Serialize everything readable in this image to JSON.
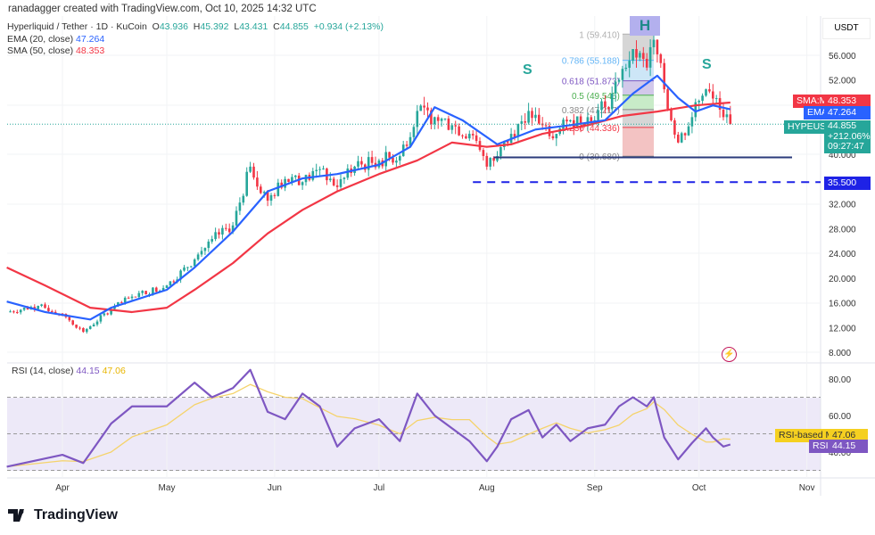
{
  "credit": "ranadagger created with TradingView.com, Oct 10, 2025 14:32 UTC",
  "legend": {
    "symbol": "Hyperliquid / Tether · 1D · KuCoin",
    "o_label": "O",
    "o": "43.936",
    "h_label": "H",
    "h": "45.392",
    "l_label": "L",
    "l": "43.431",
    "c_label": "C",
    "c": "44.855",
    "change": "+0.934 (+2.13%)",
    "ema_label": "EMA (20, close)",
    "ema": "47.264",
    "sma_label": "SMA (50, close)",
    "sma": "48.353",
    "rsi_label": "RSI (14, close)",
    "rsi": "44.15",
    "rsi_ma": "47.06"
  },
  "currency": "USDT",
  "tags": {
    "sma_name": "SMA:MA",
    "sma": "48.353",
    "ema_name": "EMA",
    "ema": "47.264",
    "sym_name": "HYPEUSDT",
    "price": "44.855",
    "pct": "+212.06%",
    "countdown": "09:27:47",
    "level": "35.500",
    "rsi_ma_name": "RSI-based MA",
    "rsi_ma": "47.06",
    "rsi_name": "RSI",
    "rsi": "44.15"
  },
  "annotations": {
    "left_shoulder": "S",
    "head": "H",
    "right_shoulder": "S"
  },
  "logo": "TradingView",
  "colors": {
    "up": "#26a69a",
    "down": "#f23645",
    "ema": "#2962ff",
    "sma": "#f23645",
    "rsi": "#7e57c2",
    "rsi_ma": "#f5d36b",
    "neckline": "#2a3a7a",
    "support": "#1e22e6"
  },
  "chart_data": [
    {
      "type": "candlestick",
      "title": "Hyperliquid / Tether · 1D · KuCoin",
      "ylabel": "USDT",
      "ylim": [
        6,
        62
      ],
      "y_ticks": [
        "56.000",
        "52.000",
        "40.000",
        "32.000",
        "28.000",
        "24.000",
        "20.000",
        "16.000",
        "12.000",
        "8.000"
      ],
      "x_ticks": [
        "Apr",
        "May",
        "Jun",
        "Jul",
        "Aug",
        "Sep",
        "Oct",
        "Nov"
      ],
      "close": [
        [
          "2025-03-16",
          14.5
        ],
        [
          "2025-03-25",
          15.5
        ],
        [
          "2025-04-01",
          14.2
        ],
        [
          "2025-04-07",
          11.3
        ],
        [
          "2025-04-15",
          15
        ],
        [
          "2025-04-21",
          17
        ],
        [
          "2025-05-01",
          18.8
        ],
        [
          "2025-05-09",
          23
        ],
        [
          "2025-05-14",
          26.3
        ],
        [
          "2025-05-20",
          28.5
        ],
        [
          "2025-05-25",
          38
        ],
        [
          "2025-05-30",
          32.5
        ],
        [
          "2025-06-04",
          36
        ],
        [
          "2025-06-09",
          35.5
        ],
        [
          "2025-06-14",
          37.6
        ],
        [
          "2025-06-19",
          34.7
        ],
        [
          "2025-06-24",
          38
        ],
        [
          "2025-07-01",
          39
        ],
        [
          "2025-07-07",
          39.7
        ],
        [
          "2025-07-12",
          47
        ],
        [
          "2025-07-17",
          46
        ],
        [
          "2025-07-22",
          44.7
        ],
        [
          "2025-07-27",
          43.3
        ],
        [
          "2025-08-01",
          38
        ],
        [
          "2025-08-04",
          39.7
        ],
        [
          "2025-08-08",
          43.3
        ],
        [
          "2025-08-13",
          47
        ],
        [
          "2025-08-17",
          44.7
        ],
        [
          "2025-08-21",
          43.3
        ],
        [
          "2025-08-25",
          45.5
        ],
        [
          "2025-08-30",
          46
        ],
        [
          "2025-09-04",
          47.6
        ],
        [
          "2025-09-08",
          52
        ],
        [
          "2025-09-12",
          57
        ],
        [
          "2025-09-16",
          54
        ],
        [
          "2025-09-18",
          58.5
        ],
        [
          "2025-09-21",
          50.5
        ],
        [
          "2025-09-25",
          41.9
        ],
        [
          "2025-09-29",
          46
        ],
        [
          "2025-10-03",
          50.5
        ],
        [
          "2025-10-05",
          49
        ],
        [
          "2025-10-08",
          46
        ],
        [
          "2025-10-10",
          44.855
        ]
      ],
      "series": [
        {
          "name": "EMA (20, close)",
          "values": [
            [
              "2025-03-16",
              16.2
            ],
            [
              "2025-03-27",
              14.5
            ],
            [
              "2025-04-09",
              13.3
            ],
            [
              "2025-04-15",
              15.2
            ],
            [
              "2025-05-01",
              18.1
            ],
            [
              "2025-05-09",
              21.7
            ],
            [
              "2025-05-20",
              27.5
            ],
            [
              "2025-05-30",
              34
            ],
            [
              "2025-06-09",
              36.1
            ],
            [
              "2025-06-19",
              36.8
            ],
            [
              "2025-07-01",
              38.3
            ],
            [
              "2025-07-10",
              41.2
            ],
            [
              "2025-07-17",
              47.6
            ],
            [
              "2025-07-25",
              45.5
            ],
            [
              "2025-08-04",
              41.6
            ],
            [
              "2025-08-15",
              44
            ],
            [
              "2025-08-25",
              44.7
            ],
            [
              "2025-09-04",
              45.5
            ],
            [
              "2025-09-12",
              49.8
            ],
            [
              "2025-09-19",
              52.7
            ],
            [
              "2025-09-25",
              49.1
            ],
            [
              "2025-09-30",
              46.9
            ],
            [
              "2025-10-05",
              47.9
            ],
            [
              "2025-10-10",
              47.264
            ]
          ]
        },
        {
          "name": "SMA (50, close)",
          "values": [
            [
              "2025-03-16",
              21.7
            ],
            [
              "2025-03-27",
              18.8
            ],
            [
              "2025-04-09",
              15.2
            ],
            [
              "2025-04-21",
              14.5
            ],
            [
              "2025-05-01",
              15.2
            ],
            [
              "2025-05-09",
              18.1
            ],
            [
              "2025-05-20",
              22.4
            ],
            [
              "2025-05-30",
              27.2
            ],
            [
              "2025-06-09",
              31
            ],
            [
              "2025-06-19",
              34
            ],
            [
              "2025-07-01",
              36.8
            ],
            [
              "2025-07-12",
              39
            ],
            [
              "2025-07-22",
              41.9
            ],
            [
              "2025-08-01",
              41.2
            ],
            [
              "2025-08-08",
              41.6
            ],
            [
              "2025-08-17",
              43.3
            ],
            [
              "2025-08-30",
              44.7
            ],
            [
              "2025-09-09",
              46.2
            ],
            [
              "2025-09-19",
              46.9
            ],
            [
              "2025-09-30",
              47.9
            ],
            [
              "2025-10-10",
              48.353
            ]
          ]
        }
      ],
      "fibonacci": [
        {
          "level": "1",
          "price": 59.41
        },
        {
          "level": "0.786",
          "price": 55.188
        },
        {
          "level": "0.618",
          "price": 51.873
        },
        {
          "level": "0.5",
          "price": 49.545
        },
        {
          "level": "0.382",
          "price": 47.217
        },
        {
          "level": "0.236",
          "price": 44.336
        },
        {
          "level": "0",
          "price": 39.68
        }
      ],
      "neckline": 39.5,
      "support": 35.5
    },
    {
      "type": "line",
      "title": "RSI (14, close)",
      "ylim": [
        25,
        90
      ],
      "y_ticks": [
        "80.00",
        "60.00",
        "40.00"
      ],
      "bands": [
        70,
        50,
        30
      ],
      "series": [
        {
          "name": "RSI",
          "values": [
            [
              "2025-03-16",
              32
            ],
            [
              "2025-04-01",
              38.5
            ],
            [
              "2025-04-07",
              34
            ],
            [
              "2025-04-15",
              55.6
            ],
            [
              "2025-04-21",
              65
            ],
            [
              "2025-05-01",
              65
            ],
            [
              "2025-05-09",
              78
            ],
            [
              "2025-05-14",
              70
            ],
            [
              "2025-05-20",
              75
            ],
            [
              "2025-05-25",
              85
            ],
            [
              "2025-05-30",
              62
            ],
            [
              "2025-06-04",
              58
            ],
            [
              "2025-06-09",
              72
            ],
            [
              "2025-06-14",
              65
            ],
            [
              "2025-06-19",
              43
            ],
            [
              "2025-06-24",
              53
            ],
            [
              "2025-07-01",
              58
            ],
            [
              "2025-07-07",
              46
            ],
            [
              "2025-07-12",
              72
            ],
            [
              "2025-07-17",
              60
            ],
            [
              "2025-07-22",
              53
            ],
            [
              "2025-07-27",
              46
            ],
            [
              "2025-08-01",
              35
            ],
            [
              "2025-08-04",
              43
            ],
            [
              "2025-08-08",
              58
            ],
            [
              "2025-08-13",
              63
            ],
            [
              "2025-08-17",
              48
            ],
            [
              "2025-08-21",
              55
            ],
            [
              "2025-08-25",
              46
            ],
            [
              "2025-08-30",
              53
            ],
            [
              "2025-09-04",
              55
            ],
            [
              "2025-09-08",
              65
            ],
            [
              "2025-09-12",
              70
            ],
            [
              "2025-09-16",
              65
            ],
            [
              "2025-09-18",
              70
            ],
            [
              "2025-09-21",
              48
            ],
            [
              "2025-09-25",
              36
            ],
            [
              "2025-09-29",
              45
            ],
            [
              "2025-10-03",
              53
            ],
            [
              "2025-10-05",
              48
            ],
            [
              "2025-10-08",
              43
            ],
            [
              "2025-10-10",
              44.15
            ]
          ]
        }
      ]
    }
  ]
}
